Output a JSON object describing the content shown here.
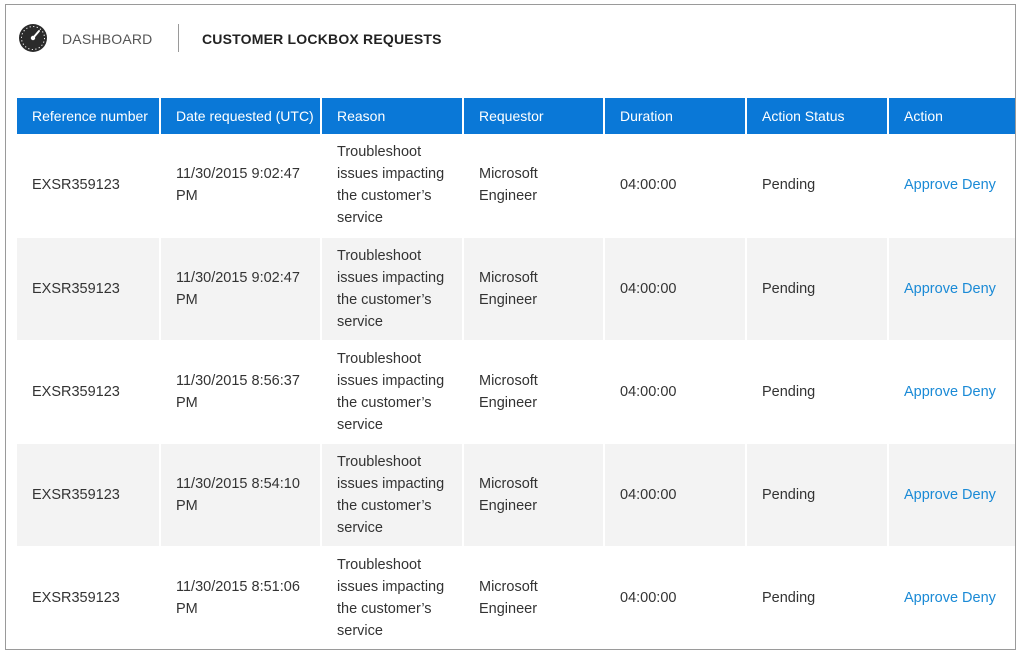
{
  "header": {
    "dashboard_label": "DASHBOARD",
    "title": "CUSTOMER LOCKBOX REQUESTS"
  },
  "table": {
    "columns": [
      "Reference number",
      "Date requested (UTC)",
      "Reason",
      "Requestor",
      "Duration",
      "Action Status",
      "Action"
    ],
    "rows": [
      {
        "reference": "EXSR359123",
        "date_line1": "11/30/2015 9:02:47",
        "date_line2": "PM",
        "reason": "Troubleshoot issues impacting the customer’s service",
        "requestor": "Microsoft Engineer",
        "duration": "04:00:00",
        "status": "Pending",
        "approve": "Approve",
        "deny": "Deny"
      },
      {
        "reference": "EXSR359123",
        "date_line1": "11/30/2015 9:02:47",
        "date_line2": "PM",
        "reason": "Troubleshoot issues impacting the customer’s service",
        "requestor": "Microsoft Engineer",
        "duration": "04:00:00",
        "status": "Pending",
        "approve": "Approve",
        "deny": "Deny"
      },
      {
        "reference": "EXSR359123",
        "date_line1": "11/30/2015 8:56:37",
        "date_line2": "PM",
        "reason": "Troubleshoot issues impacting the customer’s service",
        "requestor": "Microsoft Engineer",
        "duration": "04:00:00",
        "status": "Pending",
        "approve": "Approve",
        "deny": "Deny"
      },
      {
        "reference": "EXSR359123",
        "date_line1": "11/30/2015 8:54:10",
        "date_line2": "PM",
        "reason": "Troubleshoot issues impacting the customer’s service",
        "requestor": "Microsoft Engineer",
        "duration": "04:00:00",
        "status": "Pending",
        "approve": "Approve",
        "deny": "Deny"
      },
      {
        "reference": "EXSR359123",
        "date_line1": "11/30/2015 8:51:06",
        "date_line2": "PM",
        "reason": "Troubleshoot issues impacting the customer’s service",
        "requestor": "Microsoft Engineer",
        "duration": "04:00:00",
        "status": "Pending",
        "approve": "Approve",
        "deny": "Deny"
      }
    ]
  },
  "colors": {
    "header_bar": "#0a78d7",
    "link": "#1a8ad6",
    "alt_row": "#f3f3f3"
  },
  "icons": {
    "dashboard": "gauge-icon"
  }
}
